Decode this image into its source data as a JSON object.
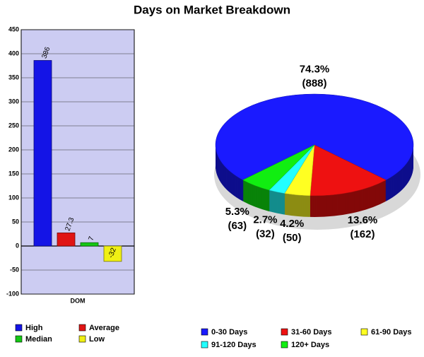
{
  "title": "Days on Market Breakdown",
  "chart_data": [
    {
      "type": "bar",
      "categories": [
        "DOM"
      ],
      "series": [
        {
          "name": "High",
          "color": "#1414e6",
          "values": [
            386
          ]
        },
        {
          "name": "Average",
          "color": "#e01414",
          "values": [
            27.3
          ]
        },
        {
          "name": "Median",
          "color": "#14c814",
          "values": [
            7
          ]
        },
        {
          "name": "Low",
          "color": "#f0f014",
          "values": [
            -32
          ]
        }
      ],
      "ylim": [
        -100,
        450
      ],
      "yticks": [
        -100,
        -50,
        0,
        50,
        100,
        150,
        200,
        250,
        300,
        350,
        400,
        450
      ],
      "grid": true,
      "background": "#ccccf2"
    },
    {
      "type": "pie",
      "categories": [
        "0-30 Days",
        "31-60 Days",
        "61-90 Days",
        "91-120 Days",
        "120+ Days"
      ],
      "values": [
        74.3,
        13.6,
        4.2,
        2.7,
        5.3
      ],
      "value_labels": [
        "74.3%",
        "13.6%",
        "4.2%",
        "2.7%",
        "5.3%"
      ],
      "count_labels": [
        "(888)",
        "(162)",
        "(50)",
        "(32)",
        "(63)"
      ],
      "colors": [
        "#1a1aff",
        "#ee1111",
        "#ffff22",
        "#22ffff",
        "#11ee11"
      ]
    }
  ]
}
